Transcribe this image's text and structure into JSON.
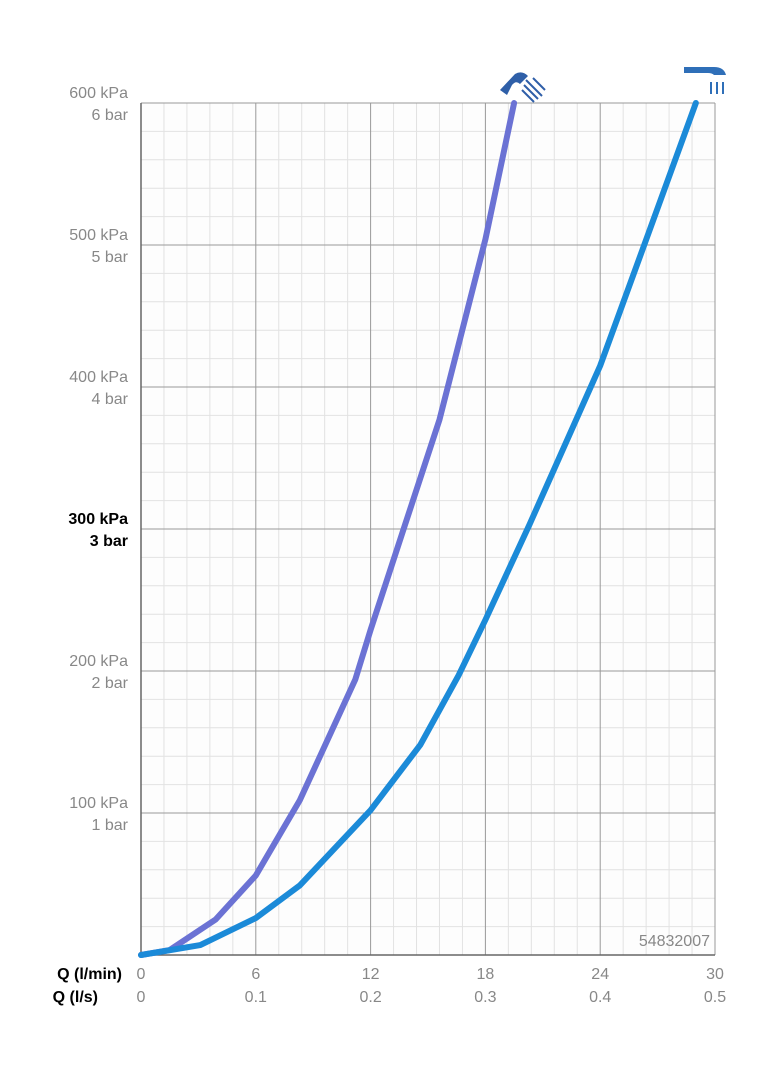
{
  "chart_data": {
    "type": "line",
    "xlabel": "Q (l/min)",
    "x2label": "Q (l/s)",
    "xlim": [
      0,
      30
    ],
    "xticks": [
      0,
      6,
      12,
      18,
      24,
      30
    ],
    "x2lim": [
      0,
      0.5
    ],
    "x2ticks": [
      0,
      0.1,
      0.2,
      0.3,
      0.4,
      0.5
    ],
    "ylim": [
      0,
      600
    ],
    "yticks": [
      {
        "value": 100,
        "label": "100 kPa"
      },
      {
        "value": 200,
        "label": "200 kPa"
      },
      {
        "value": 300,
        "label": "300 kPa"
      },
      {
        "value": 400,
        "label": "400 kPa"
      },
      {
        "value": 500,
        "label": "500 kPa"
      },
      {
        "value": 600,
        "label": "600 kPa"
      }
    ],
    "y2lim": [
      0,
      6
    ],
    "y2ticks": [
      {
        "value": 1,
        "label": "1 bar"
      },
      {
        "value": 2,
        "label": "2 bar"
      },
      {
        "value": 3,
        "label": "3 bar"
      },
      {
        "value": 4,
        "label": "4 bar"
      },
      {
        "value": 5,
        "label": "5 bar"
      },
      {
        "value": 6,
        "label": "6 bar"
      }
    ],
    "emphasized_ytick": 300,
    "grid": true,
    "minor_divisions": 5,
    "annotation": "54832007",
    "series": [
      {
        "color": "#6b72d4",
        "x": [
          0,
          1.5,
          3.9,
          6,
          8.3,
          11.2,
          12,
          13.8,
          15.6,
          18,
          19.5
        ],
        "values": [
          0,
          3.5,
          25,
          56,
          109,
          194,
          229,
          303,
          377,
          504,
          600
        ]
      },
      {
        "color": "#1b8ad8",
        "x": [
          0,
          3.1,
          6,
          8.3,
          12,
          14.6,
          16.6,
          18,
          20.3,
          24,
          26.3,
          29
        ],
        "values": [
          0,
          7,
          26,
          49,
          102,
          148,
          197,
          236,
          303,
          415,
          500,
          600
        ]
      }
    ]
  }
}
